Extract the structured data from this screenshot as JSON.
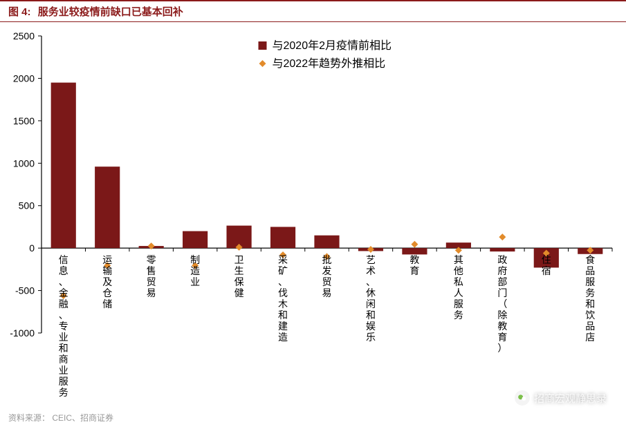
{
  "title": {
    "label": "图 4:",
    "text": "服务业较疫情前缺口已基本回补"
  },
  "footer": {
    "prefix": "资料来源：",
    "source": "CEIC、招商证券"
  },
  "watermark": {
    "text": "招商宏观静思录"
  },
  "chart": {
    "type": "bar+scatter",
    "background_color": "#ffffff",
    "axis_color": "#000000",
    "bar_color": "#7b1818",
    "marker_color": "#e28b2b",
    "legend": {
      "bar": "与2020年2月疫情前相比",
      "marker": "与2022年趋势外推相比",
      "fontsize": 16,
      "text_color": "#000000"
    },
    "ylim": [
      -1000,
      2500
    ],
    "ytick_step": 500,
    "yticks": [
      -1000,
      -500,
      0,
      500,
      1000,
      1500,
      2000,
      2500
    ],
    "ytick_fontsize": 14,
    "xlabel_fontsize": 14,
    "bar_width": 0.57,
    "marker_size": 10,
    "categories": [
      "信息、金融、专业和商业服务",
      "运输及仓储",
      "零售贸易",
      "制造业",
      "卫生保健",
      "采矿、伐木和建造",
      "批发贸易",
      "艺术、休闲和娱乐",
      "教育",
      "其他私人服务",
      "政府部门（除教育）",
      "住宿",
      "食品服务和饮品店"
    ],
    "bar_values": [
      1950,
      960,
      25,
      200,
      265,
      250,
      150,
      -35,
      -75,
      65,
      -40,
      -230,
      -70
    ],
    "marker_values": [
      -560,
      -205,
      25,
      -205,
      10,
      -80,
      -100,
      -15,
      45,
      -25,
      130,
      -60,
      -25
    ]
  }
}
